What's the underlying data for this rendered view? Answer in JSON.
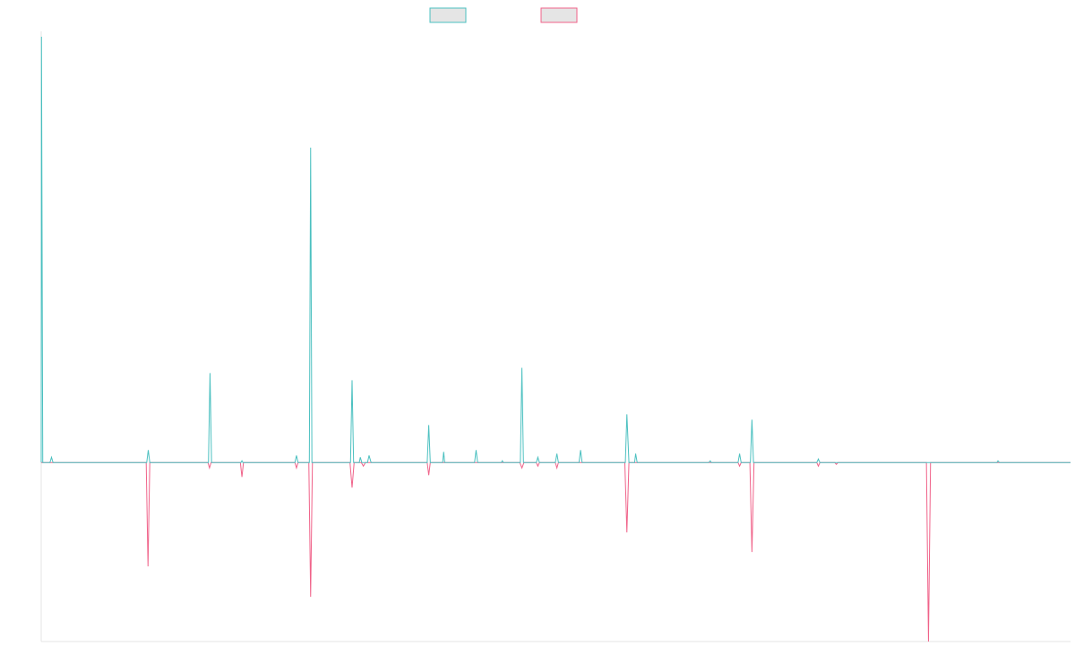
{
  "chart_data": {
    "type": "line",
    "title": "",
    "xlabel": "",
    "ylabel": "",
    "x_range": [
      0,
      200
    ],
    "ylim": [
      -1,
      2.4
    ],
    "grid": false,
    "legend_position": "top-center",
    "series": [
      {
        "color": "#4bc0c0",
        "fill": "#e5e5e5",
        "points": [
          [
            0,
            0
          ],
          [
            0.05,
            2.38
          ],
          [
            0.3,
            0
          ],
          [
            1.7,
            0
          ],
          [
            2,
            0.03
          ],
          [
            2.3,
            0
          ],
          [
            20.5,
            0
          ],
          [
            20.8,
            0.07
          ],
          [
            21.1,
            0
          ],
          [
            32.5,
            0
          ],
          [
            32.8,
            0.5
          ],
          [
            33.1,
            0
          ],
          [
            38.8,
            0
          ],
          [
            39,
            0.01
          ],
          [
            39.2,
            0
          ],
          [
            49.3,
            0
          ],
          [
            49.6,
            0.04
          ],
          [
            49.9,
            0
          ],
          [
            52.1,
            0
          ],
          [
            52.35,
            1.76
          ],
          [
            52.6,
            0
          ],
          [
            60.1,
            0
          ],
          [
            60.4,
            0.46
          ],
          [
            60.7,
            0
          ],
          [
            61.8,
            0
          ],
          [
            62,
            0.03
          ],
          [
            62.3,
            0
          ],
          [
            63.4,
            0
          ],
          [
            63.7,
            0.04
          ],
          [
            64.1,
            0
          ],
          [
            75,
            0
          ],
          [
            75.3,
            0.21
          ],
          [
            75.6,
            0
          ],
          [
            78,
            0
          ],
          [
            78.2,
            0.06
          ],
          [
            78.4,
            0
          ],
          [
            84.2,
            0
          ],
          [
            84.5,
            0.07
          ],
          [
            84.8,
            0
          ],
          [
            89.4,
            0
          ],
          [
            89.6,
            0.01
          ],
          [
            89.8,
            0
          ],
          [
            93.1,
            0
          ],
          [
            93.4,
            0.53
          ],
          [
            93.7,
            0
          ],
          [
            96.2,
            0
          ],
          [
            96.5,
            0.03
          ],
          [
            96.8,
            0
          ],
          [
            99.9,
            0
          ],
          [
            100.2,
            0.05
          ],
          [
            100.5,
            0
          ],
          [
            104.5,
            0
          ],
          [
            104.8,
            0.07
          ],
          [
            105.1,
            0
          ],
          [
            113.5,
            0
          ],
          [
            113.8,
            0.27
          ],
          [
            114.2,
            0
          ],
          [
            115.3,
            0
          ],
          [
            115.5,
            0.05
          ],
          [
            115.8,
            0
          ],
          [
            129.7,
            0
          ],
          [
            130,
            0.01
          ],
          [
            130.2,
            0
          ],
          [
            135.4,
            0
          ],
          [
            135.7,
            0.05
          ],
          [
            136,
            0
          ],
          [
            137.8,
            0
          ],
          [
            138.1,
            0.24
          ],
          [
            138.4,
            0
          ],
          [
            150.7,
            0
          ],
          [
            151,
            0.02
          ],
          [
            151.3,
            0
          ],
          [
            185.7,
            0
          ],
          [
            185.9,
            0.01
          ],
          [
            186.2,
            0
          ],
          [
            200,
            0
          ]
        ]
      },
      {
        "color": "#f06289",
        "fill": "#e5e5e5",
        "points": [
          [
            0,
            0
          ],
          [
            20.4,
            0
          ],
          [
            20.75,
            -0.58
          ],
          [
            21.1,
            0
          ],
          [
            32.4,
            0
          ],
          [
            32.7,
            -0.03
          ],
          [
            33,
            0
          ],
          [
            38.7,
            0
          ],
          [
            39,
            -0.08
          ],
          [
            39.3,
            0
          ],
          [
            49.3,
            0
          ],
          [
            49.6,
            -0.03
          ],
          [
            49.9,
            0
          ],
          [
            52,
            0
          ],
          [
            52.35,
            -0.75
          ],
          [
            52.7,
            0
          ],
          [
            60,
            0
          ],
          [
            60.4,
            -0.14
          ],
          [
            60.8,
            0
          ],
          [
            62.2,
            0
          ],
          [
            62.6,
            -0.02
          ],
          [
            63,
            0
          ],
          [
            75,
            0
          ],
          [
            75.3,
            -0.07
          ],
          [
            75.6,
            0
          ],
          [
            93,
            0
          ],
          [
            93.4,
            -0.03
          ],
          [
            93.8,
            0
          ],
          [
            96.2,
            0
          ],
          [
            96.5,
            -0.02
          ],
          [
            96.8,
            0
          ],
          [
            99.9,
            0
          ],
          [
            100.2,
            -0.03
          ],
          [
            100.5,
            0
          ],
          [
            113.4,
            0
          ],
          [
            113.8,
            -0.39
          ],
          [
            114.2,
            0
          ],
          [
            135.4,
            0
          ],
          [
            135.7,
            -0.02
          ],
          [
            136,
            0
          ],
          [
            137.7,
            0
          ],
          [
            138.1,
            -0.5
          ],
          [
            138.5,
            0
          ],
          [
            150.7,
            0
          ],
          [
            151,
            -0.02
          ],
          [
            151.3,
            0
          ],
          [
            154.2,
            0
          ],
          [
            154.5,
            -0.01
          ],
          [
            154.8,
            0
          ],
          [
            172,
            0
          ],
          [
            172.4,
            -1.0
          ],
          [
            172.8,
            0
          ],
          [
            200,
            0
          ]
        ]
      }
    ]
  }
}
